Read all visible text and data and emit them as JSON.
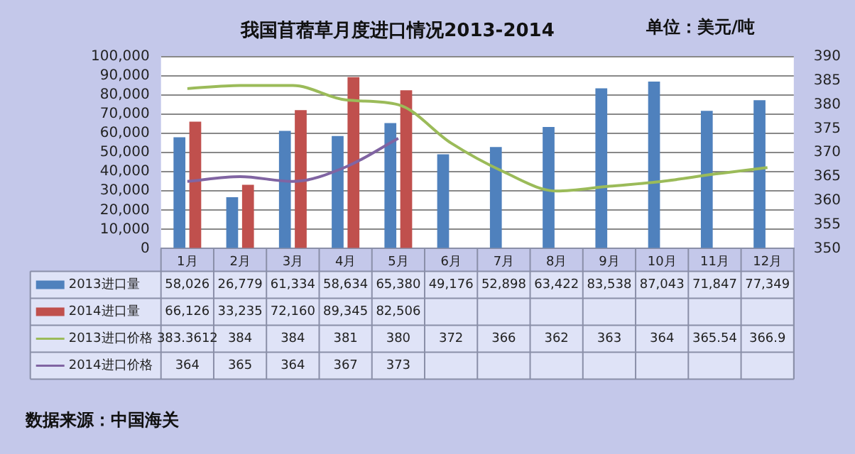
{
  "chart_data": {
    "type": "bar",
    "title": "我国苜蓿草月度进口情况2013-2014",
    "y2label": "单位：美元/吨",
    "categories": [
      "1月",
      "2月",
      "3月",
      "4月",
      "5月",
      "6月",
      "7月",
      "8月",
      "9月",
      "10月",
      "11月",
      "12月"
    ],
    "series": [
      {
        "name": "2013进口量",
        "color": "#4f81bd",
        "values": [
          58026,
          26779,
          61334,
          58634,
          65380,
          49176,
          52898,
          63422,
          83538,
          87043,
          71847,
          77349
        ],
        "value_labels": [
          "58,026",
          "26,779",
          "61,334",
          "58,634",
          "65,380",
          "49,176",
          "52,898",
          "63,422",
          "83,538",
          "87,043",
          "71,847",
          "77,349"
        ]
      },
      {
        "name": "2014进口量",
        "color": "#c0504d",
        "values": [
          66126,
          33235,
          72160,
          89345,
          82506,
          null,
          null,
          null,
          null,
          null,
          null,
          null
        ],
        "value_labels": [
          "66,126",
          "33,235",
          "72,160",
          "89,345",
          "82,506",
          null,
          null,
          null,
          null,
          null,
          null,
          null
        ]
      },
      {
        "name": "2013进口价格",
        "type": "line",
        "axis": "y2",
        "color": "#9bbb59",
        "values": [
          383.3612,
          384,
          384,
          381,
          380,
          372,
          366,
          362,
          363,
          364,
          365.54,
          366.9
        ],
        "value_labels": [
          "383.3612",
          "384",
          "384",
          "381",
          "380",
          "372",
          "366",
          "362",
          "363",
          "364",
          "365.54",
          "366.9"
        ]
      },
      {
        "name": "2014进口价格",
        "type": "line",
        "axis": "y2",
        "color": "#8064a2",
        "values": [
          364,
          365,
          364,
          367,
          373,
          null,
          null,
          null,
          null,
          null,
          null,
          null
        ],
        "value_labels": [
          "364",
          "365",
          "364",
          "367",
          "373",
          null,
          null,
          null,
          null,
          null,
          null,
          null
        ]
      }
    ],
    "ylim": [
      0,
      100000
    ],
    "yticks": [
      {
        "value": 0,
        "label": "0"
      },
      {
        "value": 10000,
        "label": "10,000"
      },
      {
        "value": 20000,
        "label": "20,000"
      },
      {
        "value": 30000,
        "label": "30,000"
      },
      {
        "value": 40000,
        "label": "40,000"
      },
      {
        "value": 50000,
        "label": "50,000"
      },
      {
        "value": 60000,
        "label": "60,000"
      },
      {
        "value": 70000,
        "label": "70,000"
      },
      {
        "value": 80000,
        "label": "80,000"
      },
      {
        "value": 90000,
        "label": "90,000"
      },
      {
        "value": 100000,
        "label": "100,000"
      }
    ],
    "y2lim": [
      350,
      390
    ],
    "y2ticks": [
      350,
      355,
      360,
      365,
      370,
      375,
      380,
      385,
      390
    ],
    "grid": "y",
    "legend": "bottom",
    "marker": "none",
    "annotations": [
      "数据来源：中国海关"
    ]
  }
}
